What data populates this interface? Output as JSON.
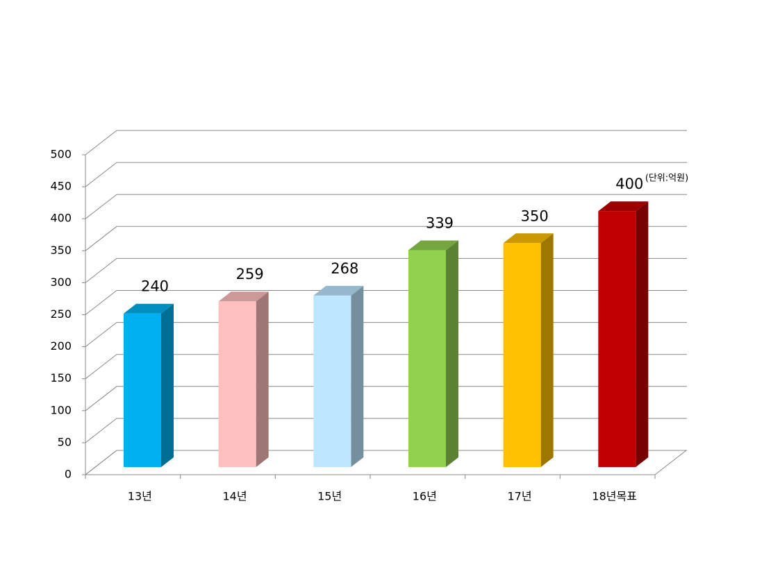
{
  "chart_data": {
    "type": "bar3d",
    "annotation": "(단위:억원)",
    "categories": [
      "13년",
      "14년",
      "15년",
      "16년",
      "17년",
      "18년목표"
    ],
    "values": [
      240,
      259,
      268,
      339,
      350,
      400
    ],
    "colors": [
      "#00b0f0",
      "#ffbfbf",
      "#bde6ff",
      "#92d050",
      "#ffc000",
      "#c00000"
    ],
    "ylim": [
      0,
      500
    ],
    "yticks": [
      0,
      50,
      100,
      150,
      200,
      250,
      300,
      350,
      400,
      450,
      500
    ],
    "grid": true
  }
}
